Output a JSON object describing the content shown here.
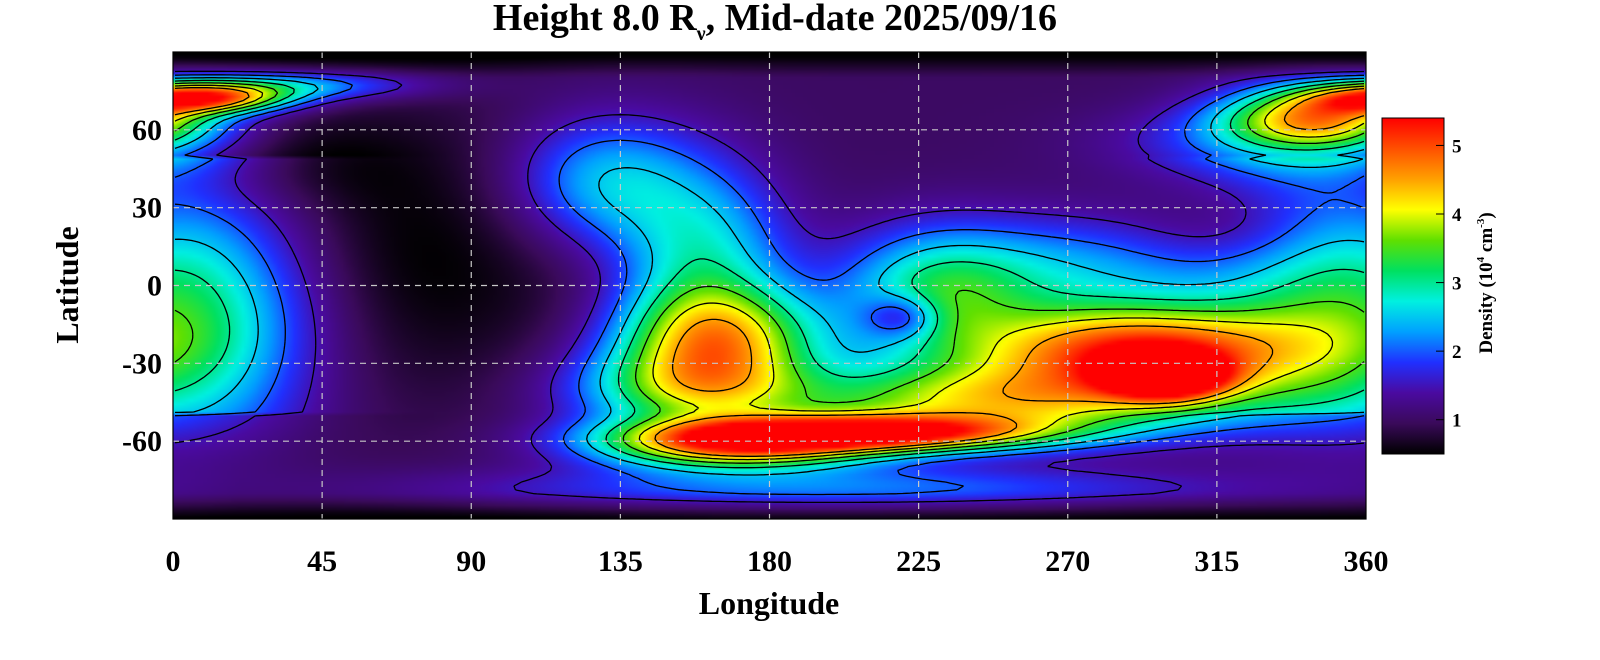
{
  "chart_data": {
    "type": "heatmap",
    "title_parts": {
      "main": "Height 8.0 R",
      "subscript": "ν",
      "rest": ", Mid-date 2025/09/16"
    },
    "xlabel": "Longitude",
    "ylabel": "Latitude",
    "xlim": [
      0,
      360
    ],
    "ylim": [
      -90,
      90
    ],
    "xticks": [
      0,
      45,
      90,
      135,
      180,
      225,
      270,
      315,
      360
    ],
    "yticks": [
      -60,
      -30,
      0,
      30,
      60
    ],
    "grid": true,
    "colorbar": {
      "label_parts": {
        "prefix": "Density (10",
        "exp1": "4",
        "mid": " cm",
        "exp2": "-3",
        "suffix": ")"
      },
      "range": [
        0.5,
        5.4
      ],
      "ticks": [
        1,
        2,
        3,
        4,
        5
      ],
      "colormap": [
        "#000000",
        "#3a0a5a",
        "#4a0aa0",
        "#2030ff",
        "#00a0ff",
        "#00f0e0",
        "#00e060",
        "#60e000",
        "#ffff00",
        "#ffa000",
        "#ff5000",
        "#ff0000"
      ]
    },
    "background_level": 1.0,
    "features": [
      {
        "lon": 290,
        "lat": -25,
        "peak": 4.9,
        "lon_width": 35,
        "lat_width": 12
      },
      {
        "lon": 300,
        "lat": -35,
        "peak": 4.4,
        "lon_width": 12,
        "lat_width": 6
      },
      {
        "lon": 205,
        "lat": -57,
        "peak": 5.0,
        "lon_width": 40,
        "lat_width": 5
      },
      {
        "lon": 170,
        "lat": -63,
        "peak": 3.8,
        "lon_width": 30,
        "lat_width": 6
      },
      {
        "lon": 250,
        "lat": -45,
        "peak": 3.7,
        "lon_width": 50,
        "lat_width": 10
      },
      {
        "lon": 165,
        "lat": -20,
        "peak": 3.6,
        "lon_width": 22,
        "lat_width": 14
      },
      {
        "lon": 155,
        "lat": -40,
        "peak": 3.0,
        "lon_width": 25,
        "lat_width": 12
      },
      {
        "lon": 160,
        "lat": 10,
        "peak": 2.7,
        "lon_width": 18,
        "lat_width": 25
      },
      {
        "lon": 130,
        "lat": 40,
        "peak": 2.5,
        "lon_width": 20,
        "lat_width": 18
      },
      {
        "lon": 230,
        "lat": -5,
        "peak": 2.7,
        "lon_width": 20,
        "lat_width": 18
      },
      {
        "lon": 270,
        "lat": 5,
        "peak": 2.3,
        "lon_width": 35,
        "lat_width": 15
      },
      {
        "lon": 345,
        "lat": 65,
        "peak": 4.0,
        "lon_width": 20,
        "lat_width": 8
      },
      {
        "lon": 10,
        "lat": 72,
        "peak": 4.2,
        "lon_width": 18,
        "lat_width": 4
      },
      {
        "lon": 30,
        "lat": 77,
        "peak": 2.5,
        "lon_width": 30,
        "lat_width": 4
      },
      {
        "lon": 340,
        "lat": 55,
        "peak": 2.2,
        "lon_width": 35,
        "lat_width": 10
      },
      {
        "lon": 200,
        "lat": -78,
        "peak": 2.1,
        "lon_width": 80,
        "lat_width": 6
      },
      {
        "lon": 360,
        "lat": -10,
        "peak": 2.0,
        "lon_width": 30,
        "lat_width": 30
      },
      {
        "lon": 0,
        "lat": -10,
        "peak": 2.0,
        "lon_width": 30,
        "lat_width": 30
      }
    ],
    "lows": [
      {
        "lon": 60,
        "lat": 10,
        "depth": -0.6,
        "lon_width": 50,
        "lat_width": 40
      },
      {
        "lon": 30,
        "lat": 50,
        "depth": -0.5,
        "lon_width": 25,
        "lat_width": 12
      },
      {
        "lon": 220,
        "lat": -12,
        "depth": -1.2,
        "lon_width": 8,
        "lat_width": 6
      },
      {
        "lon": 320,
        "lat": 20,
        "depth": -0.4,
        "lon_width": 20,
        "lat_width": 10
      }
    ]
  }
}
